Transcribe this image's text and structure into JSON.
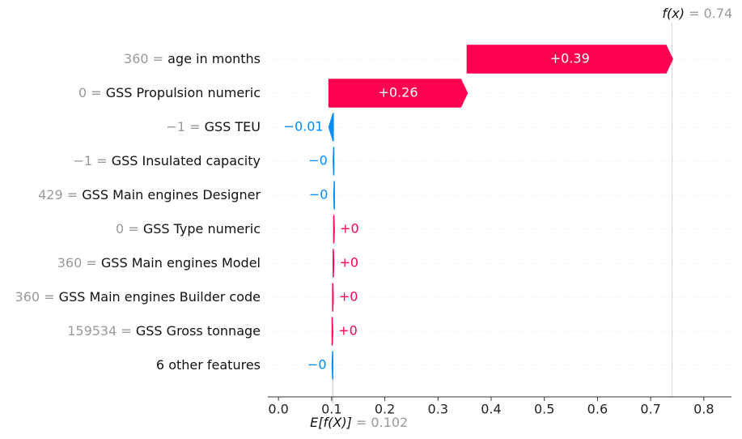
{
  "chart_data": {
    "type": "waterfall",
    "separator": "=",
    "feature_values": [
      "360",
      "0",
      "−1",
      "−1",
      "429",
      "0",
      "360",
      "360",
      "159534",
      null
    ],
    "features": [
      "age in months",
      "GSS Propulsion numeric",
      "GSS TEU",
      "GSS Insulated capacity",
      "GSS Main engines Designer",
      "GSS Type numeric",
      "GSS Main engines Model",
      "GSS Main engines Builder code",
      "GSS Gross tonnage",
      "6 other features"
    ],
    "values": [
      0.386,
      0.26,
      -0.008,
      -0.001,
      -0.001,
      0.001,
      0.001,
      0.001,
      0.001,
      -0.001
    ],
    "value_labels": [
      "+0.39",
      "+0.26",
      "−0.01",
      "−0",
      "−0",
      "+0",
      "+0",
      "+0",
      "+0",
      "−0"
    ],
    "positive_color": "#ff0051",
    "negative_color": "#008bfb",
    "base_label": "E[f(X)]",
    "base_value": 0.102,
    "output_label": "f(x)",
    "output_value": 0.74,
    "xlim": [
      -0.02,
      0.852
    ],
    "xticks": [
      {
        "value": 0,
        "label": "0.0"
      },
      0.1,
      0.2,
      0.3,
      0.4,
      0.5,
      0.6,
      0.7,
      0.8
    ]
  }
}
